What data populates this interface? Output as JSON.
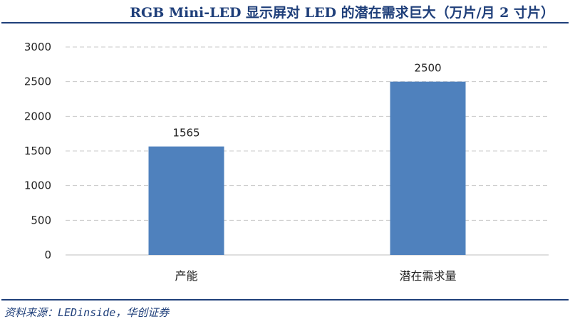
{
  "chart_data": {
    "type": "bar",
    "title": "RGB Mini-LED 显示屏对 LED 的潜在需求巨大（万片/月 2 寸片）",
    "categories": [
      "产能",
      "潜在需求量"
    ],
    "values": [
      1565,
      2500
    ],
    "data_labels": [
      "1565",
      "2500"
    ],
    "ylim": [
      0,
      3000
    ],
    "yticks": [
      "0",
      "500",
      "1000",
      "1500",
      "2000",
      "2500",
      "3000"
    ],
    "xlabel": "",
    "ylabel": "",
    "grid": true,
    "bar_color": "#4f81bd",
    "source": "资料来源：LEDinside，华创证券"
  }
}
